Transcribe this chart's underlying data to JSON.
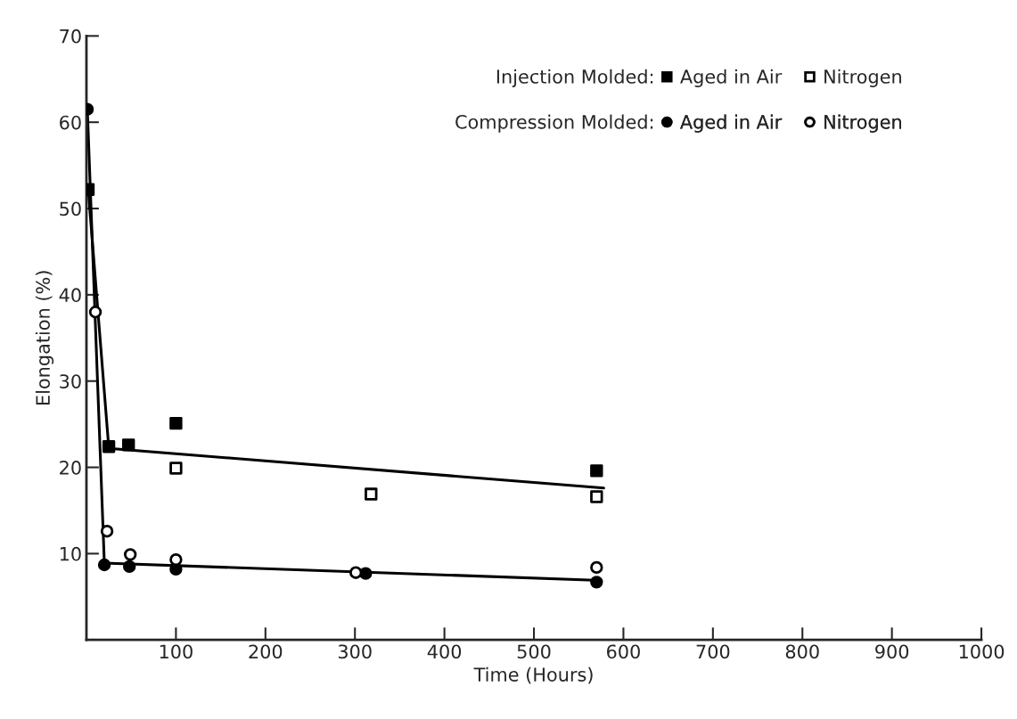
{
  "chart_data": {
    "type": "scatter",
    "xlabel": "Time (Hours)",
    "ylabel": "Elongation (%)",
    "xlim": [
      0,
      1000
    ],
    "ylim": [
      0,
      70
    ],
    "xticks": [
      100,
      200,
      300,
      400,
      500,
      600,
      700,
      800,
      900,
      1000
    ],
    "yticks": [
      10,
      20,
      30,
      40,
      50,
      60,
      70
    ],
    "grid": false,
    "legend": "top right",
    "annotations": [
      "Injection Molded:",
      "Compression Molded:"
    ],
    "series": [
      {
        "name": "Aged in Air",
        "color": "#000000",
        "marker": "square",
        "x": [
          2,
          25,
          47,
          100,
          570
        ],
        "values": [
          52.2,
          22.4,
          22.6,
          25.1,
          19.6
        ]
      },
      {
        "name": "Nitrogen",
        "color": "#ffffff",
        "marker": "square",
        "x": [
          100,
          318,
          570
        ],
        "values": [
          19.9,
          16.9,
          16.6
        ]
      },
      {
        "name": "Aged in Air",
        "color": "#000000",
        "marker": "circle",
        "x": [
          1,
          20,
          48,
          100,
          312,
          570
        ],
        "values": [
          61.5,
          8.7,
          8.5,
          8.2,
          7.7,
          6.7
        ]
      },
      {
        "name": "Nitrogen",
        "color": "#ffffff",
        "marker": "circle",
        "x": [
          10,
          23,
          49,
          100,
          301,
          570
        ],
        "values": [
          38,
          12.6,
          9.9,
          9.3,
          7.8,
          8.4
        ]
      },
      {
        "type": "line",
        "color": "#000000",
        "line_style": "solid",
        "marker": "none",
        "x": [
          2,
          25,
          578
        ],
        "values": [
          52.2,
          22.2,
          17.6
        ]
      },
      {
        "type": "line",
        "color": "#000000",
        "line_style": "solid",
        "marker": "none",
        "x": [
          1,
          20,
          575
        ],
        "values": [
          61.5,
          8.9,
          6.9
        ]
      }
    ]
  }
}
